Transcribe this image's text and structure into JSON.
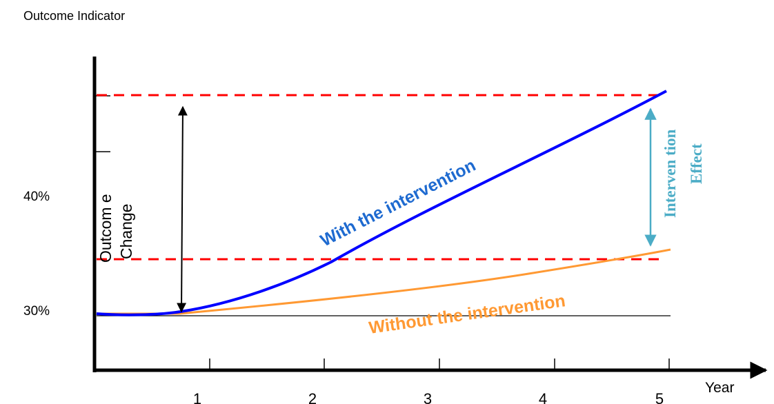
{
  "title": "Outcome Indicator",
  "y_ticks": [
    "40%",
    "30%"
  ],
  "x_ticks": [
    "1",
    "2",
    "3",
    "4",
    "5"
  ],
  "x_axis_label": "Year",
  "outcome_change_label": [
    "Outcom e",
    "Change"
  ],
  "intervention_effect_label": [
    "Interven tion",
    "Effect"
  ],
  "series": [
    {
      "name": "With the intervention",
      "color": "#0000ff",
      "label_color": "#1e6ad0"
    },
    {
      "name": "Without the intervention",
      "color": "#ff9933",
      "label_color": "#ff9933"
    }
  ],
  "colors": {
    "axis": "#000000",
    "reference_lines": "#ff0000",
    "baseline": "#000000",
    "outcome_change_arrow": "#000000",
    "intervention_effect_arrow": "#4bacc6"
  }
}
